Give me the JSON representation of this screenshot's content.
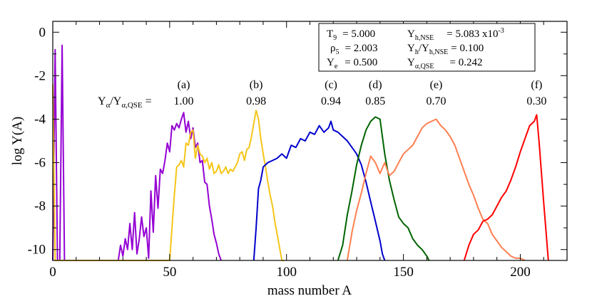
{
  "chart_data": {
    "type": "line",
    "title": "",
    "xlabel": "mass number A",
    "ylabel": "log Y(A)",
    "xlim": [
      0,
      220
    ],
    "ylim": [
      -10.5,
      0.5
    ],
    "x_ticks": [
      0,
      50,
      100,
      150,
      200
    ],
    "y_ticks": [
      0,
      -2,
      -4,
      -6,
      -8,
      -10
    ],
    "legend": {
      "T9_label": "T9 = 5.000",
      "rho_label": "ρ5 = 2.003",
      "Ye_label": "Ye = 0.500",
      "Yh_label": "Yh,NSE = 5.083 x10^-3",
      "ratio_label": "Yh/Yh,NSE = 0.100",
      "Yalpha_label": "Yα,QSE = 0.242",
      "T9_sym": "T",
      "T9_sub": "9",
      "T9_val": "= 5.000",
      "rho_sym": "ρ",
      "rho_sub": "5",
      "rho_val": "= 2.003",
      "Ye_sym": "Y",
      "Ye_sub": "e",
      "Ye_val": "= 0.500",
      "Yh_sym": "Y",
      "Yh_sub": "h,NSE",
      "Yh_val": "= 5.083 x10",
      "Yh_exp": "-3",
      "ratio_sym1": "Y",
      "ratio_sub1": "h",
      "ratio_mid": "/Y",
      "ratio_sub2": "h,NSE",
      "ratio_val": "= 0.100",
      "Ya_sym": "Y",
      "Ya_sub": "α,QSE",
      "Ya_val": "= 0.242"
    },
    "ratio_label": "Yα/Yα,QSE =",
    "ratio_parts": {
      "sym1": "Y",
      "sub1": "α",
      "mid": "/Y",
      "sub2": "α,QSE",
      "eq": " ="
    },
    "series": [
      {
        "name": "(a)",
        "ratio": "1.00",
        "color": "#9400d3",
        "x": [
          0,
          1,
          2,
          3,
          4,
          5,
          28,
          29,
          30,
          31,
          32,
          33,
          34,
          35,
          36,
          37,
          38,
          39,
          40,
          41,
          42,
          43,
          44,
          45,
          46,
          47,
          48,
          49,
          50,
          51,
          52,
          53,
          54,
          55,
          56,
          57,
          58,
          59,
          60,
          61,
          62,
          63,
          64,
          65,
          66,
          67,
          68,
          69,
          70,
          71,
          72
        ],
        "y": [
          -10.5,
          -0.8,
          -10.5,
          -10.5,
          -0.6,
          -10.5,
          -10.5,
          -9.8,
          -10.3,
          -9.5,
          -10.0,
          -8.8,
          -10.0,
          -8.3,
          -10.2,
          -9.5,
          -8.5,
          -9.4,
          -9.0,
          -10.4,
          -7.3,
          -9.2,
          -6.6,
          -8.1,
          -6.3,
          -6.5,
          -5.9,
          -5.1,
          -5.5,
          -4.3,
          -4.5,
          -4.2,
          -4.4,
          -4.0,
          -3.7,
          -4.6,
          -4.1,
          -4.9,
          -4.4,
          -5.3,
          -5.1,
          -6.0,
          -5.9,
          -6.9,
          -7.0,
          -8.0,
          -8.6,
          -9.3,
          -9.7,
          -10.2,
          -10.5
        ]
      },
      {
        "name": "(b)",
        "ratio": "0.98",
        "color": "#f5c518",
        "x": [
          0,
          1,
          2,
          50,
          51,
          52,
          53,
          54,
          55,
          56,
          57,
          58,
          59,
          60,
          61,
          62,
          63,
          64,
          65,
          66,
          67,
          68,
          69,
          70,
          71,
          72,
          73,
          74,
          75,
          76,
          77,
          78,
          79,
          80,
          81,
          82,
          83,
          84,
          85,
          86,
          87,
          88,
          89,
          90,
          91,
          92,
          93,
          94,
          95,
          96,
          97,
          98,
          99
        ],
        "y": [
          -2.4,
          -10.5,
          -10.5,
          -10.5,
          -9.0,
          -7.5,
          -6.2,
          -6.1,
          -5.9,
          -6.2,
          -5.1,
          -5.2,
          -4.6,
          -4.5,
          -5.8,
          -5.2,
          -5.6,
          -5.7,
          -6.0,
          -5.8,
          -6.3,
          -6.0,
          -6.5,
          -6.4,
          -6.1,
          -6.5,
          -6.4,
          -6.2,
          -6.5,
          -6.3,
          -6.4,
          -6.2,
          -6.0,
          -5.6,
          -5.5,
          -5.9,
          -5.4,
          -5.3,
          -4.8,
          -4.2,
          -3.6,
          -4.0,
          -4.9,
          -5.6,
          -6.2,
          -6.9,
          -7.5,
          -8.0,
          -8.7,
          -9.3,
          -9.9,
          -10.5,
          -10.5
        ]
      },
      {
        "name": "(c)",
        "ratio": "0.94",
        "color": "#0000cd",
        "x": [
          86,
          87,
          88,
          89,
          90,
          92,
          94,
          96,
          98,
          100,
          102,
          104,
          106,
          108,
          110,
          112,
          114,
          116,
          118,
          119,
          120,
          122,
          124,
          126,
          128,
          130,
          132,
          134,
          136,
          138,
          140,
          141,
          142
        ],
        "y": [
          -10.5,
          -9.0,
          -7.2,
          -6.8,
          -6.2,
          -6.0,
          -5.9,
          -5.8,
          -5.6,
          -5.8,
          -5.2,
          -5.3,
          -4.9,
          -5.0,
          -4.6,
          -4.7,
          -4.3,
          -4.6,
          -4.4,
          -4.1,
          -4.5,
          -4.6,
          -4.8,
          -5.0,
          -5.3,
          -5.6,
          -6.1,
          -6.9,
          -7.8,
          -8.7,
          -9.6,
          -10.2,
          -10.5
        ]
      },
      {
        "name": "(d)",
        "ratio": "0.85",
        "color": "#006400",
        "x": [
          122,
          124,
          126,
          128,
          130,
          132,
          134,
          136,
          138,
          140,
          142,
          144,
          146,
          148,
          150,
          152,
          154,
          156,
          158,
          160,
          161
        ],
        "y": [
          -10.5,
          -9.8,
          -8.4,
          -7.3,
          -6.1,
          -5.2,
          -4.5,
          -4.1,
          -3.9,
          -4.0,
          -5.6,
          -6.8,
          -7.7,
          -8.5,
          -8.8,
          -9.0,
          -9.5,
          -9.8,
          -10.0,
          -10.3,
          -10.5
        ]
      },
      {
        "name": "(e)",
        "ratio": "0.70",
        "color": "#ff7f50",
        "x": [
          126,
          128,
          130,
          132,
          134,
          136,
          138,
          140,
          142,
          144,
          146,
          148,
          150,
          152,
          154,
          156,
          158,
          160,
          162,
          164,
          166,
          168,
          170,
          172,
          174,
          176,
          178,
          180,
          182,
          184,
          186,
          188,
          190,
          192,
          194,
          196,
          198,
          200,
          202
        ],
        "y": [
          -10.5,
          -9.2,
          -8.2,
          -7.4,
          -6.5,
          -5.7,
          -6.0,
          -6.5,
          -6.0,
          -6.6,
          -6.4,
          -6.0,
          -5.6,
          -5.4,
          -5.2,
          -4.8,
          -4.4,
          -4.2,
          -4.1,
          -4.0,
          -4.3,
          -4.5,
          -4.8,
          -5.2,
          -5.8,
          -6.4,
          -7.0,
          -7.5,
          -8.1,
          -8.6,
          -8.8,
          -9.3,
          -9.6,
          -9.9,
          -10.1,
          -10.3,
          -10.4,
          -10.4,
          -10.5
        ]
      },
      {
        "name": "(f)",
        "ratio": "0.30",
        "color": "#ff0000",
        "x": [
          176,
          178,
          180,
          182,
          184,
          186,
          188,
          190,
          192,
          194,
          196,
          198,
          200,
          202,
          204,
          206,
          207,
          208,
          210,
          212
        ],
        "y": [
          -10.5,
          -9.8,
          -9.3,
          -9.1,
          -8.7,
          -8.6,
          -8.4,
          -8.0,
          -7.6,
          -7.3,
          -6.8,
          -6.2,
          -5.5,
          -4.9,
          -4.3,
          -4.1,
          -3.8,
          -5.0,
          -7.8,
          -10.5
        ]
      }
    ]
  }
}
